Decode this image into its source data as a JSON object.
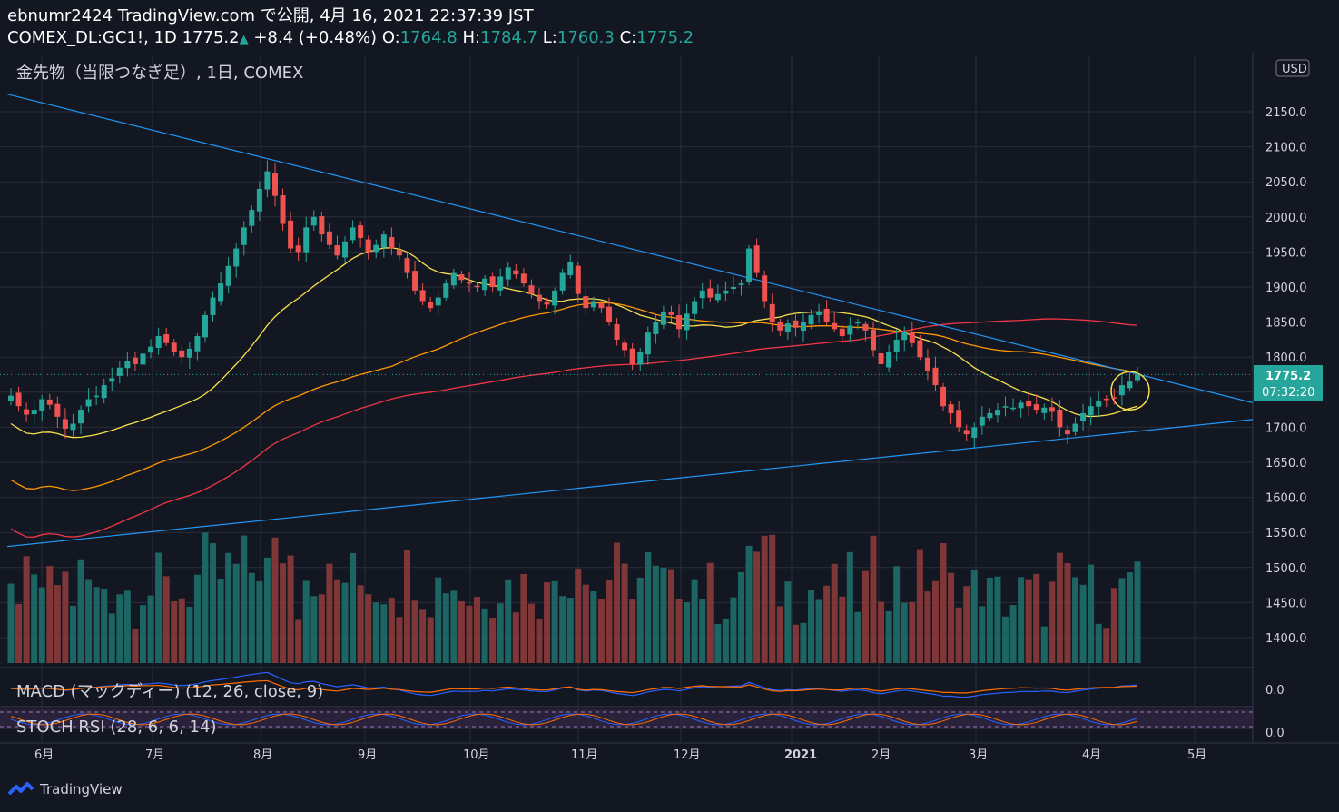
{
  "header": {
    "publisher": "ebnumr2424 TradingView.com で公開, 4月 16, 2021 22:37:39 JST",
    "symbol": "COMEX_DL:GC1!, 1D",
    "last": "1775.2",
    "change": "+8.4 (+0.48%)",
    "o_label": "O:",
    "o": "1764.8",
    "h_label": "H:",
    "h": "1784.7",
    "l_label": "L:",
    "l": "1760.3",
    "c_label": "C:",
    "c": "1775.2"
  },
  "main_title": "金先物（当限つなぎ足）, 1日, COMEX",
  "currency": "USD",
  "price_tag": {
    "price": "1775.2",
    "countdown": "07:32:20"
  },
  "macd_label": "MACD (マックディー) (12, 26, close, 9)",
  "macd_value": "0.0",
  "stoch_label": "STOCH RSI (28, 6, 6, 14)",
  "stoch_value": "0.0",
  "footer_brand": "TradingView",
  "colors": {
    "bg": "#131722",
    "up": "#26a69a",
    "down": "#ef5350",
    "ma_yellow": "#f7e04b",
    "ma_orange": "#ff9800",
    "ma_red": "#f23645",
    "trend": "#2962ff"
  },
  "chart_data": {
    "type": "candlestick",
    "y_ticks": [
      2150,
      2100,
      2050,
      2000,
      1950,
      1900,
      1850,
      1800,
      1750,
      1700,
      1650,
      1600,
      1550,
      1500,
      1450,
      1400
    ],
    "ylim": [
      1360,
      2230
    ],
    "x_labels": [
      "6月",
      "7月",
      "8月",
      "9月",
      "10月",
      "11月",
      "12月",
      "2021",
      "2月",
      "3月",
      "4月",
      "5月"
    ],
    "close_path": [
      1745,
      1730,
      1718,
      1725,
      1740,
      1732,
      1715,
      1698,
      1705,
      1725,
      1740,
      1745,
      1760,
      1770,
      1785,
      1795,
      1790,
      1805,
      1815,
      1830,
      1820,
      1808,
      1800,
      1812,
      1830,
      1860,
      1885,
      1905,
      1930,
      1955,
      1985,
      2010,
      2040,
      2065,
      2030,
      1990,
      1955,
      1950,
      1985,
      2000,
      1975,
      1960,
      1945,
      1965,
      1985,
      1970,
      1950,
      1960,
      1975,
      1955,
      1945,
      1920,
      1895,
      1880,
      1870,
      1885,
      1905,
      1920,
      1910,
      1905,
      1900,
      1912,
      1900,
      1915,
      1928,
      1918,
      1905,
      1890,
      1880,
      1875,
      1895,
      1920,
      1935,
      1890,
      1870,
      1880,
      1870,
      1850,
      1825,
      1810,
      1790,
      1808,
      1835,
      1850,
      1865,
      1860,
      1840,
      1862,
      1880,
      1895,
      1885,
      1890,
      1895,
      1900,
      1905,
      1955,
      1920,
      1880,
      1850,
      1838,
      1848,
      1842,
      1850,
      1860,
      1865,
      1850,
      1840,
      1830,
      1845,
      1850,
      1838,
      1810,
      1790,
      1808,
      1825,
      1835,
      1820,
      1800,
      1780,
      1760,
      1730,
      1720,
      1700,
      1690,
      1700,
      1715,
      1720,
      1725,
      1730,
      1728,
      1735,
      1730,
      1725,
      1728,
      1722,
      1700,
      1690,
      1705,
      1720,
      1730,
      1738,
      1740,
      1742,
      1760,
      1765,
      1775.2
    ]
  }
}
